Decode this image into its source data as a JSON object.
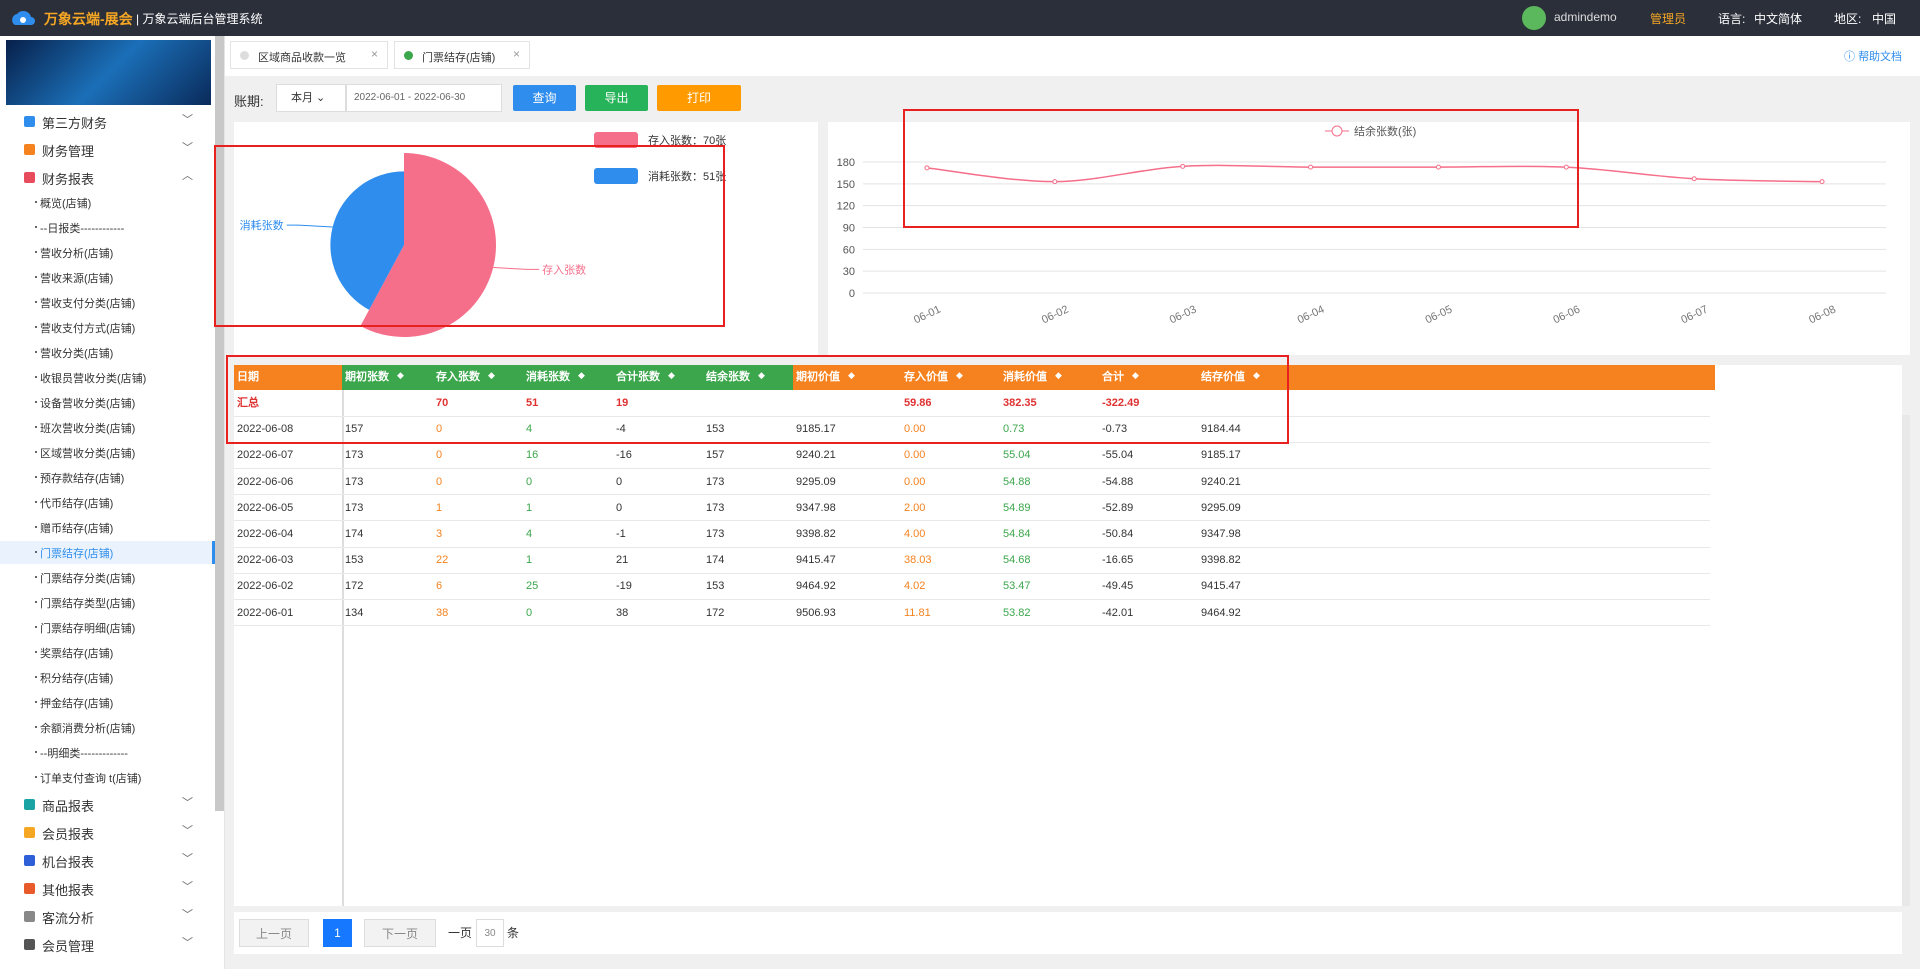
{
  "header": {
    "brand": "万象云端-展会",
    "system": "万象云端后台管理系统",
    "user": "admindemo",
    "role": "管理员",
    "lang_label": "语言:",
    "lang": "中文简体",
    "region_label": "地区:",
    "region": "中国"
  },
  "sidebar": {
    "items": [
      {
        "label": "第三方财务"
      },
      {
        "label": "财务管理"
      },
      {
        "label": "财务报表",
        "children": [
          "概览(店铺)",
          "--日报类------------",
          "营收分析(店铺)",
          "营收来源(店铺)",
          "营收支付分类(店铺)",
          "营收支付方式(店铺)",
          "营收分类(店铺)",
          "收银员营收分类(店铺)",
          "设备营收分类(店铺)",
          "班次营收分类(店铺)",
          "区域营收分类(店铺)",
          "预存款结存(店铺)",
          "代币结存(店铺)",
          "赠币结存(店铺)",
          "门票结存(店铺)",
          "门票结存分类(店铺)",
          "门票结存类型(店铺)",
          "门票结存明细(店铺)",
          "奖票结存(店铺)",
          "积分结存(店铺)",
          "押金结存(店铺)",
          "余额消费分析(店铺)",
          "--明细类-------------",
          "订单支付查询 t(店铺)"
        ]
      },
      {
        "label": "商品报表"
      },
      {
        "label": "会员报表"
      },
      {
        "label": "机台报表"
      },
      {
        "label": "其他报表"
      },
      {
        "label": "客流分析"
      },
      {
        "label": "会员管理"
      }
    ]
  },
  "tabs": [
    "区域商品收款一览",
    "门票结存(店铺)"
  ],
  "help": "帮助文档",
  "toolbar": {
    "label": "账期:",
    "period": "本月",
    "date_range": "2022-06-01 - 2022-06-30",
    "buttons": [
      "查询",
      "导出",
      "打印"
    ]
  },
  "chart_data": [
    {
      "type": "pie",
      "categories": [
        "存入张数",
        "消耗张数"
      ],
      "values": [
        70,
        51
      ],
      "colors": [
        "#f56e8a",
        "#2e8ded"
      ],
      "legend_labels": [
        "存入张数：70张",
        "消耗张数：51张"
      ]
    },
    {
      "type": "line",
      "categories": [
        "06-01",
        "06-02",
        "06-03",
        "06-04",
        "06-05",
        "06-06",
        "06-07",
        "06-08"
      ],
      "series": [
        {
          "name": "结余张数(张)",
          "color": "#f56e8a",
          "values": [
            172,
            153,
            174,
            173,
            173,
            173,
            157,
            153
          ]
        }
      ],
      "ylim": [
        0,
        180
      ],
      "yticks": [
        0,
        30,
        60,
        90,
        120,
        150,
        180
      ],
      "grid": true
    }
  ],
  "table": {
    "columns": [
      "日期",
      "期初张数",
      "存入张数",
      "消耗张数",
      "合计张数",
      "结余张数",
      "期初价值",
      "存入价值",
      "消耗价值",
      "合计",
      "结存价值"
    ],
    "summary": [
      "汇总",
      null,
      "70",
      "51",
      "19",
      null,
      null,
      "59.86",
      "382.35",
      "-322.49",
      null
    ],
    "rows": [
      [
        "2022-06-08",
        "157",
        "0",
        "4",
        "-4",
        "153",
        "9185.17",
        "0.00",
        "0.73",
        "-0.73",
        "9184.44"
      ],
      [
        "2022-06-07",
        "173",
        "0",
        "16",
        "-16",
        "157",
        "9240.21",
        "0.00",
        "55.04",
        "-55.04",
        "9185.17"
      ],
      [
        "2022-06-06",
        "173",
        "0",
        "0",
        "0",
        "173",
        "9295.09",
        "0.00",
        "54.88",
        "-54.88",
        "9240.21"
      ],
      [
        "2022-06-05",
        "173",
        "1",
        "1",
        "0",
        "173",
        "9347.98",
        "2.00",
        "54.89",
        "-52.89",
        "9295.09"
      ],
      [
        "2022-06-04",
        "174",
        "3",
        "4",
        "-1",
        "173",
        "9398.82",
        "4.00",
        "54.84",
        "-50.84",
        "9347.98"
      ],
      [
        "2022-06-03",
        "153",
        "22",
        "1",
        "21",
        "174",
        "9415.47",
        "38.03",
        "54.68",
        "-16.65",
        "9398.82"
      ],
      [
        "2022-06-02",
        "172",
        "6",
        "25",
        "-19",
        "153",
        "9464.92",
        "4.02",
        "53.47",
        "-49.45",
        "9415.47"
      ],
      [
        "2022-06-01",
        "134",
        "38",
        "0",
        "38",
        "172",
        "9506.93",
        "11.81",
        "53.82",
        "-42.01",
        "9464.92"
      ]
    ]
  },
  "pagination": {
    "prev": "上一页",
    "page": "1",
    "next": "下一页",
    "per_label": "一页",
    "per": "30",
    "unit": "条"
  }
}
